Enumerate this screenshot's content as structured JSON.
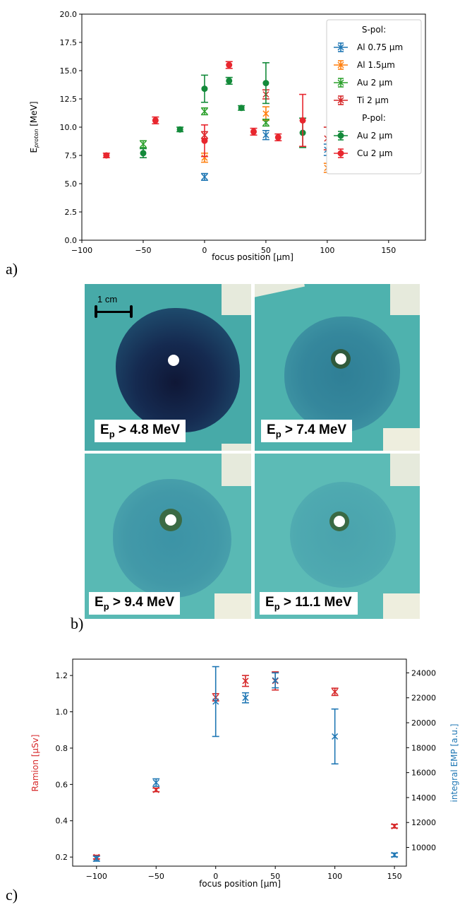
{
  "panels": {
    "a": "a)",
    "b": "b)",
    "c": "c)"
  },
  "chart_data": [
    {
      "type": "scatter",
      "xlabel": "focus position [µm]",
      "ylabel": "E",
      "ylabel_sub": "proton",
      "ylabel_unit": " [MeV]",
      "xlim": [
        -100,
        180
      ],
      "ylim": [
        0,
        20
      ],
      "xticks": [
        -100,
        -50,
        0,
        50,
        100,
        150
      ],
      "xtick_labels": [
        "−100",
        "−50",
        "0",
        "50",
        "100",
        "150"
      ],
      "yticks": [
        0,
        2.5,
        5,
        7.5,
        10,
        12.5,
        15,
        17.5,
        20
      ],
      "ytick_labels": [
        "0.0",
        "2.5",
        "5.0",
        "7.5",
        "10.0",
        "12.5",
        "15.0",
        "17.5",
        "20.0"
      ],
      "legend_placement": "top-right",
      "legend_headers": [
        "S-pol:",
        "P-pol:"
      ],
      "series": [
        {
          "name": "Al 0.75 µm",
          "group": "S-pol",
          "marker": "x",
          "color": "#1f77b4",
          "points": [
            [
              0,
              5.6,
              0.3
            ],
            [
              50,
              9.3,
              0.4
            ],
            [
              100,
              8.0,
              0.5
            ]
          ]
        },
        {
          "name": "Al 1.5µm",
          "group": "S-pol",
          "marker": "x",
          "color": "#ff7f0e",
          "points": [
            [
              0,
              7.3,
              0.4
            ],
            [
              50,
              11.2,
              0.6
            ],
            [
              100,
              6.4,
              0.4
            ]
          ]
        },
        {
          "name": "Au 2 µm",
          "group": "S-pol",
          "marker": "x",
          "color": "#2ca02c",
          "points": [
            [
              -50,
              8.5,
              0.3
            ],
            [
              0,
              11.4,
              0.3
            ],
            [
              50,
              10.4,
              0.3
            ]
          ]
        },
        {
          "name": "Ti 2 µm",
          "group": "S-pol",
          "marker": "x",
          "color": "#d62728",
          "points": [
            [
              0,
              9.3,
              0.3
            ],
            [
              50,
              12.9,
              0.4
            ],
            [
              100,
              9.0,
              1.0
            ]
          ]
        },
        {
          "name": "Au 2 µm",
          "group": "P-pol",
          "marker": "o",
          "color": "#138a3a",
          "points": [
            [
              -50,
              7.7,
              0.4
            ],
            [
              -20,
              9.8,
              0.2
            ],
            [
              0,
              13.4,
              1.2
            ],
            [
              20,
              14.1,
              0.3
            ],
            [
              30,
              11.7,
              0.2
            ],
            [
              50,
              13.9,
              1.8
            ],
            [
              80,
              9.5,
              1.3
            ]
          ]
        },
        {
          "name": "Cu 2 µm",
          "group": "P-pol",
          "marker": "o",
          "color": "#e8262e",
          "points": [
            [
              -80,
              7.5,
              0.2
            ],
            [
              -40,
              10.6,
              0.3
            ],
            [
              0,
              8.8,
              1.4
            ],
            [
              20,
              15.5,
              0.3
            ],
            [
              40,
              9.6,
              0.3
            ],
            [
              60,
              9.1,
              0.3
            ],
            [
              80,
              10.6,
              2.3
            ]
          ]
        }
      ]
    },
    {
      "type": "scatter",
      "xlabel": "focus position [µm]",
      "ylabel_left": "Ramion [µSv]",
      "ylabel_right": "integral EMP [a.u.]",
      "xlim": [
        -120,
        160
      ],
      "ylim_left": [
        0.15,
        1.29
      ],
      "ylim_right": [
        8500,
        25100
      ],
      "xticks": [
        -100,
        -50,
        0,
        50,
        100,
        150
      ],
      "xtick_labels": [
        "−100",
        "−50",
        "0",
        "50",
        "100",
        "150"
      ],
      "yticks_left": [
        0.2,
        0.4,
        0.6,
        0.8,
        1.0,
        1.2
      ],
      "ytick_labels_left": [
        "0.2",
        "0.4",
        "0.6",
        "0.8",
        "1.0",
        "1.2"
      ],
      "yticks_right": [
        10000,
        12000,
        14000,
        16000,
        18000,
        20000,
        22000,
        24000
      ],
      "ytick_labels_right": [
        "10000",
        "12000",
        "14000",
        "16000",
        "18000",
        "20000",
        "22000",
        "24000"
      ],
      "left_color": "#d62728",
      "right_color": "#1f77b4",
      "series_left": [
        [
          -100,
          0.2,
          0.01
        ],
        [
          -50,
          0.57,
          0.01
        ],
        [
          0,
          1.08,
          0.02
        ],
        [
          25,
          1.17,
          0.03
        ],
        [
          50,
          1.17,
          0.05
        ],
        [
          100,
          1.11,
          0.02
        ],
        [
          150,
          0.37,
          0.01
        ]
      ],
      "series_right": [
        [
          -100,
          9100,
          200
        ],
        [
          -50,
          15200,
          300
        ],
        [
          0,
          21700,
          2800
        ],
        [
          25,
          22000,
          400
        ],
        [
          50,
          23400,
          600
        ],
        [
          100,
          18900,
          2200
        ],
        [
          150,
          9400,
          150
        ]
      ]
    }
  ],
  "photo_panel": {
    "scale_bar_label": "1 cm",
    "captions": [
      {
        "main": "E",
        "sub": "p",
        "rest": " > 4.8 MeV"
      },
      {
        "main": "E",
        "sub": "p",
        "rest": " > 7.4 MeV"
      },
      {
        "main": "E",
        "sub": "p",
        "rest": " > 9.4 MeV"
      },
      {
        "main": "E",
        "sub": "p",
        "rest": " > 11.1 MeV"
      }
    ]
  }
}
